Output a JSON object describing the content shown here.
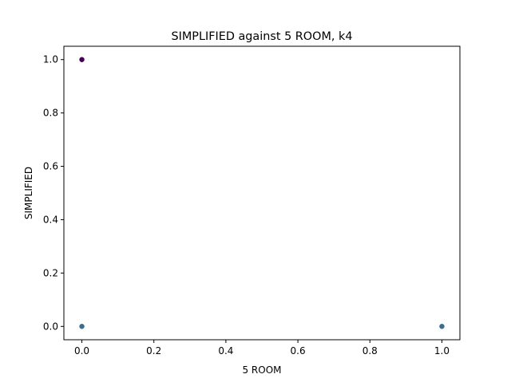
{
  "chart_data": {
    "type": "scatter",
    "title": "SIMPLIFIED against 5 ROOM, k4",
    "xlabel": "5 ROOM",
    "ylabel": "SIMPLIFIED",
    "xlim": [
      -0.05,
      1.05
    ],
    "ylim": [
      -0.05,
      1.05
    ],
    "xticks": [
      0.0,
      0.2,
      0.4,
      0.6,
      0.8,
      1.0
    ],
    "yticks": [
      0.0,
      0.2,
      0.4,
      0.6,
      0.8,
      1.0
    ],
    "xtick_labels": [
      "0.0",
      "0.2",
      "0.4",
      "0.6",
      "0.8",
      "1.0"
    ],
    "ytick_labels": [
      "0.0",
      "0.2",
      "0.4",
      "0.6",
      "0.8",
      "1.0"
    ],
    "grid": false,
    "legend": false,
    "points": [
      {
        "x": 0.0,
        "y": 1.0,
        "color": "#440154"
      },
      {
        "x": 0.0,
        "y": 0.0,
        "color": "#3b6d8c"
      },
      {
        "x": 1.0,
        "y": 0.0,
        "color": "#3b6d8c"
      }
    ]
  }
}
